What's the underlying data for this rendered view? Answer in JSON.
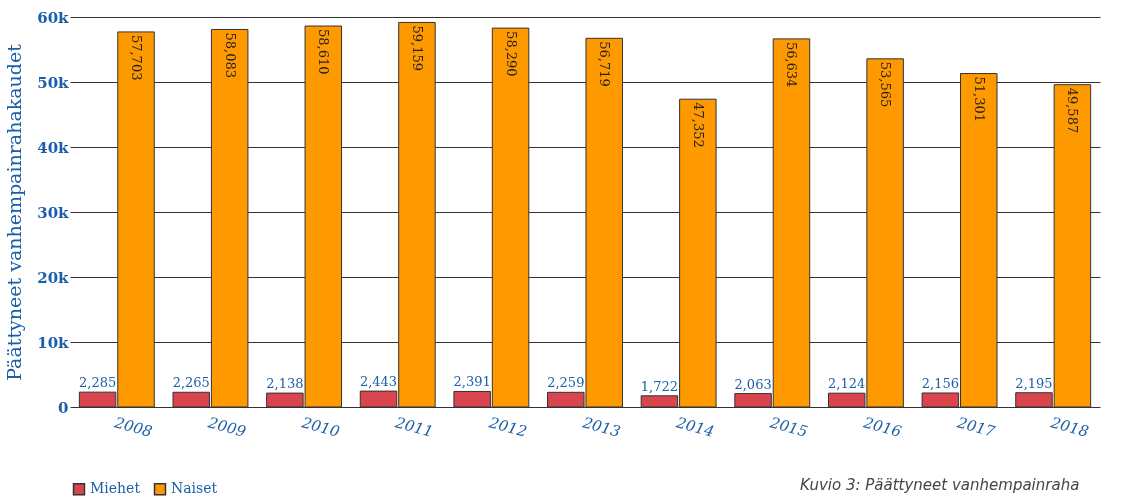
{
  "chart_data": {
    "type": "bar",
    "ylabel": "Päättyneet vanhempainrahakaudet",
    "categories": [
      "2008",
      "2009",
      "2010",
      "2011",
      "2012",
      "2013",
      "2014",
      "2015",
      "2016",
      "2017",
      "2018"
    ],
    "series": [
      {
        "name": "Miehet",
        "color": "#d9454f",
        "values": [
          2285,
          2265,
          2138,
          2443,
          2391,
          2259,
          1722,
          2063,
          2124,
          2156,
          2195
        ],
        "value_labels": [
          "2,285",
          "2,265",
          "2,138",
          "2,443",
          "2,391",
          "2,259",
          "1,722",
          "2,063",
          "2,124",
          "2,156",
          "2,195"
        ]
      },
      {
        "name": "Naiset",
        "color": "#ff9900",
        "values": [
          57703,
          58083,
          58610,
          59159,
          58290,
          56719,
          47352,
          56634,
          53565,
          51301,
          49587
        ],
        "value_labels": [
          "57,703",
          "58,083",
          "58,610",
          "59,159",
          "58,290",
          "56,719",
          "47,352",
          "56,634",
          "53,565",
          "51,301",
          "49,587"
        ]
      }
    ],
    "ylim": [
      0,
      60000
    ],
    "yticks": [
      0,
      {
        "value": 10000,
        "label": "10k"
      },
      {
        "value": 20000,
        "label": "20k"
      },
      {
        "value": 30000,
        "label": "30k"
      },
      {
        "value": 40000,
        "label": "40k"
      },
      {
        "value": 50000,
        "label": "50k"
      },
      {
        "value": 60000,
        "label": "60k"
      }
    ],
    "grid": "y",
    "legend": "bottom",
    "annotations": [
      "Kuvio 3: Päättyneet vanhempainraha"
    ]
  }
}
